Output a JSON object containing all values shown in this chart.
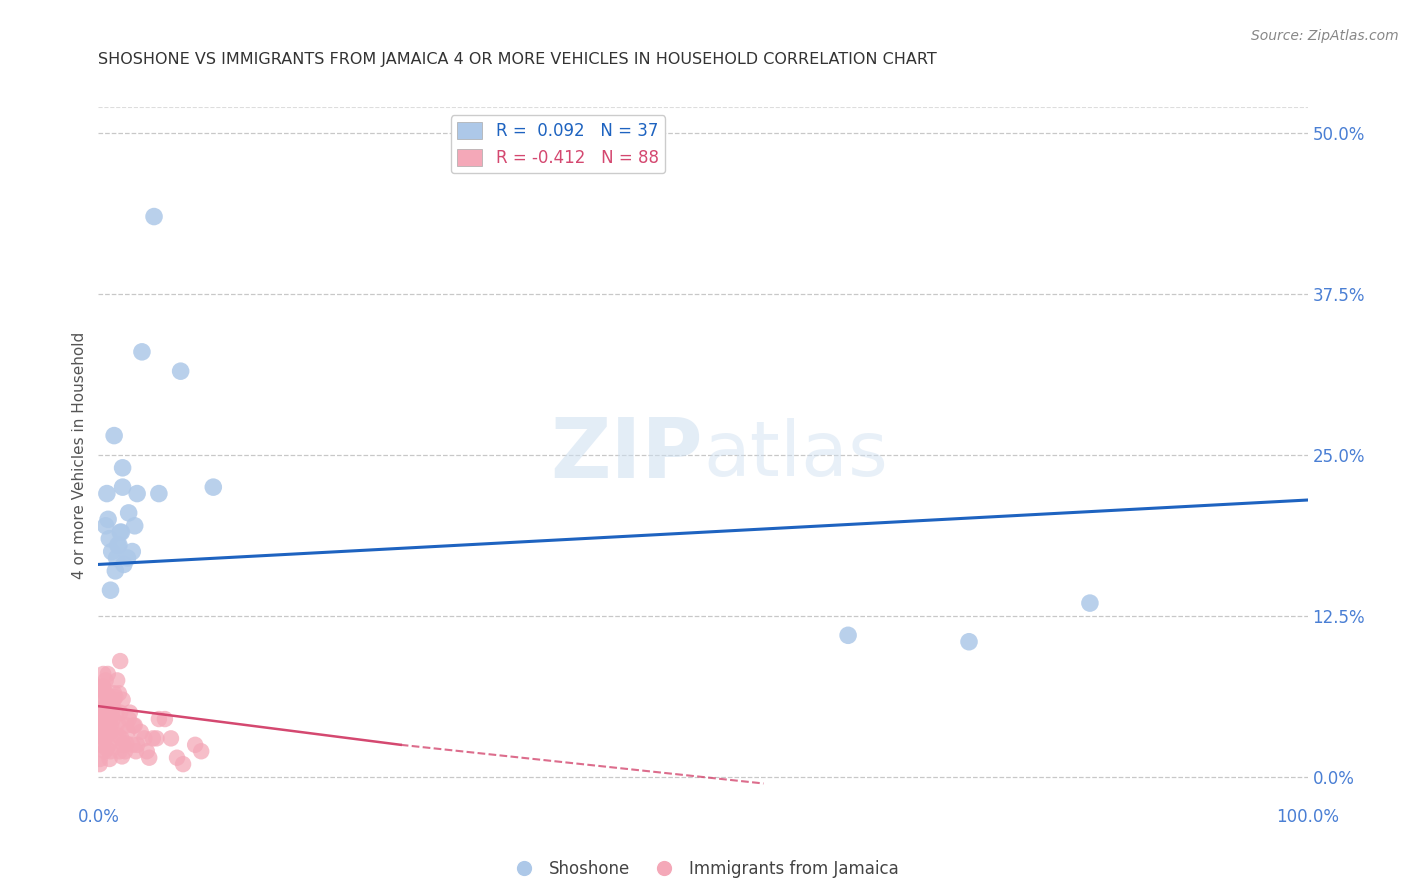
{
  "title": "SHOSHONE VS IMMIGRANTS FROM JAMAICA 4 OR MORE VEHICLES IN HOUSEHOLD CORRELATION CHART",
  "source": "Source: ZipAtlas.com",
  "ylabel": "4 or more Vehicles in Household",
  "ytick_labels": [
    "0.0%",
    "12.5%",
    "25.0%",
    "37.5%",
    "50.0%"
  ],
  "ytick_values": [
    0.0,
    12.5,
    25.0,
    37.5,
    50.0
  ],
  "xlim": [
    0.0,
    100.0
  ],
  "ylim": [
    -2.0,
    52.0
  ],
  "legend_blue_r": "0.092",
  "legend_blue_n": "37",
  "legend_pink_r": "-0.412",
  "legend_pink_n": "88",
  "blue_color": "#adc8e8",
  "blue_line_color": "#1e63c0",
  "pink_color": "#f4a8b8",
  "pink_line_color": "#d44870",
  "watermark_zip": "ZIP",
  "watermark_atlas": "atlas",
  "shoshone_x": [
    1.5,
    2.8,
    3.2,
    2.0,
    2.5,
    1.7,
    1.1,
    0.9,
    1.4,
    2.1,
    3.0,
    1.0,
    1.8,
    0.7,
    2.4,
    3.6,
    1.3,
    5.0,
    0.6,
    2.0,
    1.6,
    0.8,
    1.9,
    4.6,
    6.8,
    9.5,
    62.0,
    72.0,
    82.0
  ],
  "shoshone_y": [
    17.0,
    17.5,
    22.0,
    24.0,
    20.5,
    18.0,
    17.5,
    18.5,
    16.0,
    16.5,
    19.5,
    14.5,
    19.0,
    22.0,
    17.0,
    33.0,
    26.5,
    22.0,
    19.5,
    22.5,
    18.0,
    20.0,
    19.0,
    43.5,
    31.5,
    22.5,
    11.0,
    10.5,
    13.5
  ],
  "jamaica_x": [
    0.2,
    0.3,
    0.5,
    0.7,
    0.8,
    1.0,
    1.2,
    1.5,
    0.4,
    0.6,
    0.9,
    1.3,
    1.8,
    2.0,
    2.5,
    3.0,
    0.15,
    0.25,
    0.35,
    0.45,
    0.55,
    0.65,
    0.75,
    0.85,
    0.95,
    1.1,
    1.4,
    1.6,
    1.9,
    2.2,
    2.8,
    3.5,
    4.0,
    5.0,
    6.0,
    7.0,
    8.0,
    0.18,
    0.28,
    0.38,
    0.48,
    0.58,
    0.68,
    0.78,
    0.88,
    0.98,
    1.15,
    1.45,
    1.65,
    1.95,
    2.3,
    2.9,
    3.8,
    0.12,
    0.22,
    0.32,
    0.42,
    0.52,
    0.62,
    0.72,
    0.82,
    0.92,
    1.05,
    1.25,
    1.55,
    1.75,
    2.05,
    2.4,
    3.1,
    4.5,
    0.1,
    0.4,
    0.6,
    1.8,
    2.6,
    4.8,
    6.5,
    8.5,
    0.08,
    0.14,
    0.55,
    1.0,
    1.7,
    2.3,
    3.2,
    4.2,
    5.5,
    0.17,
    0.37
  ],
  "jamaica_y": [
    2.5,
    4.0,
    5.0,
    5.5,
    6.0,
    3.5,
    4.5,
    3.0,
    7.0,
    7.5,
    4.2,
    6.5,
    5.0,
    6.0,
    4.5,
    4.0,
    3.2,
    3.6,
    6.2,
    4.6,
    6.6,
    4.0,
    5.6,
    5.2,
    3.8,
    5.0,
    6.2,
    4.2,
    3.0,
    2.0,
    2.5,
    3.5,
    2.0,
    4.5,
    3.0,
    1.0,
    2.5,
    2.6,
    4.2,
    7.0,
    3.0,
    4.5,
    2.2,
    8.0,
    6.0,
    3.5,
    5.5,
    5.0,
    3.2,
    1.6,
    2.6,
    4.0,
    3.0,
    1.4,
    4.6,
    3.4,
    5.4,
    2.0,
    6.4,
    4.4,
    2.4,
    1.4,
    4.0,
    6.0,
    7.5,
    2.0,
    2.5,
    3.5,
    2.0,
    3.0,
    1.0,
    8.0,
    3.5,
    9.0,
    5.0,
    3.0,
    1.5,
    2.0,
    6.0,
    5.0,
    3.0,
    2.0,
    6.5,
    4.0,
    2.5,
    1.5,
    4.5,
    7.0,
    3.5
  ],
  "blue_line_x": [
    0.0,
    100.0
  ],
  "blue_line_y0": 16.5,
  "blue_line_y1": 21.5,
  "pink_line_x0": 0.0,
  "pink_line_x1": 25.0,
  "pink_line_y0": 5.5,
  "pink_line_y1": 2.5,
  "pink_dash_x0": 25.0,
  "pink_dash_x1": 55.0,
  "pink_dash_y0": 2.5,
  "pink_dash_y1": -0.5
}
